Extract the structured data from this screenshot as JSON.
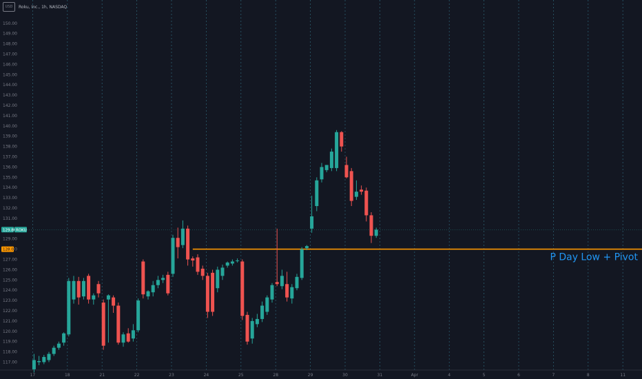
{
  "header": {
    "logo_text": "USD",
    "title": "Roku, Inc., 1h, NASDAQ"
  },
  "colors": {
    "background": "#131722",
    "up": "#26a69a",
    "down": "#ef5350",
    "level": "#ff9800",
    "annotation": "#2196f3",
    "grid": "#363c4e"
  },
  "chart_data": {
    "type": "candlestick",
    "title": "Roku, Inc., 1h, NASDAQ",
    "xlabel": "",
    "ylabel": "",
    "ylim": [
      116,
      151
    ],
    "grid": true,
    "x_ticks": [
      {
        "label": "17",
        "slot": 0
      },
      {
        "label": "18",
        "slot": 7
      },
      {
        "label": "21",
        "slot": 14
      },
      {
        "label": "22",
        "slot": 21
      },
      {
        "label": "23",
        "slot": 28
      },
      {
        "label": "24",
        "slot": 35
      },
      {
        "label": "25",
        "slot": 42
      },
      {
        "label": "28",
        "slot": 49
      },
      {
        "label": "29",
        "slot": 56
      },
      {
        "label": "30",
        "slot": 63
      },
      {
        "label": "31",
        "slot": 70
      },
      {
        "label": "Apr",
        "slot": 77
      },
      {
        "label": "4",
        "slot": 84
      },
      {
        "label": "5",
        "slot": 91
      },
      {
        "label": "6",
        "slot": 98
      },
      {
        "label": "7",
        "slot": 105
      },
      {
        "label": "8",
        "slot": 112
      },
      {
        "label": "11",
        "slot": 119
      }
    ],
    "y_ticks": [
      117,
      118,
      119,
      120,
      121,
      122,
      123,
      124,
      125,
      126,
      127,
      128,
      129,
      130,
      131,
      132,
      133,
      134,
      135,
      136,
      137,
      138,
      139,
      140,
      141,
      142,
      143,
      144,
      145,
      146,
      147,
      148,
      149,
      150
    ],
    "y_tick_labels": [
      "117.00",
      "118.00",
      "119.00",
      "120.00",
      "121.00",
      "122.00",
      "123.00",
      "124.00",
      "125.00",
      "126.00",
      "127.00",
      "128.00",
      "129.00",
      "130.00",
      "131.00",
      "132.00",
      "133.00",
      "134.00",
      "135.00",
      "136.00",
      "137.00",
      "138.00",
      "139.00",
      "140.00",
      "141.00",
      "142.00",
      "143.00",
      "144.00",
      "145.00",
      "146.00",
      "147.00",
      "148.00",
      "149.00",
      "150.00"
    ],
    "candles": [
      {
        "o": 116.3,
        "h": 117.8,
        "l": 116.0,
        "c": 117.2
      },
      {
        "o": 117.0,
        "h": 117.6,
        "l": 116.7,
        "c": 117.1
      },
      {
        "o": 117.0,
        "h": 117.7,
        "l": 116.8,
        "c": 117.5
      },
      {
        "o": 117.2,
        "h": 118.0,
        "l": 117.0,
        "c": 117.8
      },
      {
        "o": 117.8,
        "h": 118.6,
        "l": 117.6,
        "c": 118.4
      },
      {
        "o": 118.4,
        "h": 119.0,
        "l": 118.2,
        "c": 118.8
      },
      {
        "o": 118.9,
        "h": 119.9,
        "l": 118.6,
        "c": 119.8
      },
      {
        "o": 119.7,
        "h": 125.2,
        "l": 119.5,
        "c": 124.9
      },
      {
        "o": 123.1,
        "h": 125.4,
        "l": 122.7,
        "c": 124.9
      },
      {
        "o": 124.9,
        "h": 125.3,
        "l": 122.6,
        "c": 123.3
      },
      {
        "o": 123.4,
        "h": 125.2,
        "l": 123.1,
        "c": 124.9
      },
      {
        "o": 125.4,
        "h": 125.6,
        "l": 122.7,
        "c": 123.1
      },
      {
        "o": 123.1,
        "h": 123.7,
        "l": 122.6,
        "c": 123.5
      },
      {
        "o": 124.6,
        "h": 124.9,
        "l": 123.3,
        "c": 123.7
      },
      {
        "o": 122.8,
        "h": 123.1,
        "l": 118.2,
        "c": 118.6
      },
      {
        "o": 123.1,
        "h": 123.6,
        "l": 118.9,
        "c": 123.5
      },
      {
        "o": 123.3,
        "h": 123.5,
        "l": 121.8,
        "c": 122.5
      },
      {
        "o": 122.5,
        "h": 122.8,
        "l": 118.7,
        "c": 118.9
      },
      {
        "o": 118.9,
        "h": 119.9,
        "l": 118.5,
        "c": 119.7
      },
      {
        "o": 119.8,
        "h": 120.3,
        "l": 118.9,
        "c": 119.0
      },
      {
        "o": 119.3,
        "h": 120.7,
        "l": 119.0,
        "c": 120.1
      },
      {
        "o": 120.1,
        "h": 123.2,
        "l": 119.9,
        "c": 123.0
      },
      {
        "o": 126.8,
        "h": 127.0,
        "l": 123.2,
        "c": 123.6
      },
      {
        "o": 123.4,
        "h": 124.0,
        "l": 123.1,
        "c": 123.9
      },
      {
        "o": 123.8,
        "h": 124.9,
        "l": 123.4,
        "c": 124.5
      },
      {
        "o": 124.5,
        "h": 125.4,
        "l": 124.2,
        "c": 125.0
      },
      {
        "o": 125.0,
        "h": 125.5,
        "l": 124.7,
        "c": 125.2
      },
      {
        "o": 125.5,
        "h": 125.8,
        "l": 123.5,
        "c": 123.7
      },
      {
        "o": 125.6,
        "h": 129.4,
        "l": 125.3,
        "c": 129.1
      },
      {
        "o": 129.1,
        "h": 130.1,
        "l": 127.1,
        "c": 128.2
      },
      {
        "o": 128.4,
        "h": 130.8,
        "l": 128.1,
        "c": 130.0
      },
      {
        "o": 130.0,
        "h": 130.3,
        "l": 126.4,
        "c": 127.0
      },
      {
        "o": 127.1,
        "h": 127.3,
        "l": 126.3,
        "c": 126.9
      },
      {
        "o": 127.2,
        "h": 127.5,
        "l": 125.5,
        "c": 125.8
      },
      {
        "o": 126.1,
        "h": 126.4,
        "l": 125.0,
        "c": 125.4
      },
      {
        "o": 125.4,
        "h": 125.7,
        "l": 121.3,
        "c": 121.9
      },
      {
        "o": 125.7,
        "h": 126.0,
        "l": 121.5,
        "c": 121.9
      },
      {
        "o": 124.2,
        "h": 126.3,
        "l": 123.8,
        "c": 126.0
      },
      {
        "o": 125.4,
        "h": 126.5,
        "l": 125.0,
        "c": 126.2
      },
      {
        "o": 126.4,
        "h": 126.8,
        "l": 126.2,
        "c": 126.7
      },
      {
        "o": 126.6,
        "h": 127.0,
        "l": 126.4,
        "c": 126.8
      },
      {
        "o": 126.9,
        "h": 127.1,
        "l": 126.7,
        "c": 126.9
      },
      {
        "o": 126.8,
        "h": 127.0,
        "l": 121.1,
        "c": 121.5
      },
      {
        "o": 121.6,
        "h": 121.9,
        "l": 118.7,
        "c": 119.0
      },
      {
        "o": 119.3,
        "h": 121.3,
        "l": 118.8,
        "c": 121.0
      },
      {
        "o": 120.7,
        "h": 121.7,
        "l": 120.4,
        "c": 121.2
      },
      {
        "o": 121.2,
        "h": 122.9,
        "l": 120.9,
        "c": 122.5
      },
      {
        "o": 121.9,
        "h": 123.5,
        "l": 121.6,
        "c": 123.3
      },
      {
        "o": 123.1,
        "h": 124.7,
        "l": 122.8,
        "c": 124.5
      },
      {
        "o": 124.8,
        "h": 130.0,
        "l": 124.4,
        "c": 124.6
      },
      {
        "o": 124.4,
        "h": 126.0,
        "l": 124.1,
        "c": 125.4
      },
      {
        "o": 124.6,
        "h": 125.8,
        "l": 122.9,
        "c": 123.3
      },
      {
        "o": 123.2,
        "h": 124.6,
        "l": 122.7,
        "c": 124.3
      },
      {
        "o": 124.2,
        "h": 125.6,
        "l": 124.0,
        "c": 125.3
      },
      {
        "o": 125.2,
        "h": 128.2,
        "l": 125.0,
        "c": 128.0
      },
      {
        "o": 128.1,
        "h": 128.4,
        "l": 127.9,
        "c": 128.3
      },
      {
        "o": 130.0,
        "h": 133.2,
        "l": 129.6,
        "c": 131.2
      },
      {
        "o": 132.2,
        "h": 135.0,
        "l": 131.7,
        "c": 134.7
      },
      {
        "o": 134.8,
        "h": 136.4,
        "l": 134.5,
        "c": 136.0
      },
      {
        "o": 135.7,
        "h": 136.2,
        "l": 135.5,
        "c": 136.2
      },
      {
        "o": 135.9,
        "h": 137.8,
        "l": 135.6,
        "c": 137.5
      },
      {
        "o": 135.9,
        "h": 139.6,
        "l": 135.6,
        "c": 139.4
      },
      {
        "o": 139.4,
        "h": 139.5,
        "l": 137.5,
        "c": 138.0
      },
      {
        "o": 136.2,
        "h": 137.0,
        "l": 134.9,
        "c": 135.0
      },
      {
        "o": 135.6,
        "h": 135.9,
        "l": 132.2,
        "c": 132.7
      },
      {
        "o": 133.1,
        "h": 134.7,
        "l": 132.8,
        "c": 133.6
      },
      {
        "o": 133.8,
        "h": 134.2,
        "l": 133.3,
        "c": 133.6
      },
      {
        "o": 133.7,
        "h": 134.0,
        "l": 130.7,
        "c": 131.3
      },
      {
        "o": 131.3,
        "h": 131.6,
        "l": 128.6,
        "c": 129.3
      },
      {
        "o": 129.3,
        "h": 130.1,
        "l": 129.1,
        "c": 129.9
      }
    ],
    "levels": [
      {
        "price": 128.0,
        "start_slot": 32,
        "label": "P Day Low + Pivot"
      }
    ],
    "price_badges": [
      {
        "price": 129.9,
        "value": "129.86",
        "tag": "ROKU"
      },
      {
        "price": 128.0,
        "value": "128.00"
      }
    ]
  }
}
